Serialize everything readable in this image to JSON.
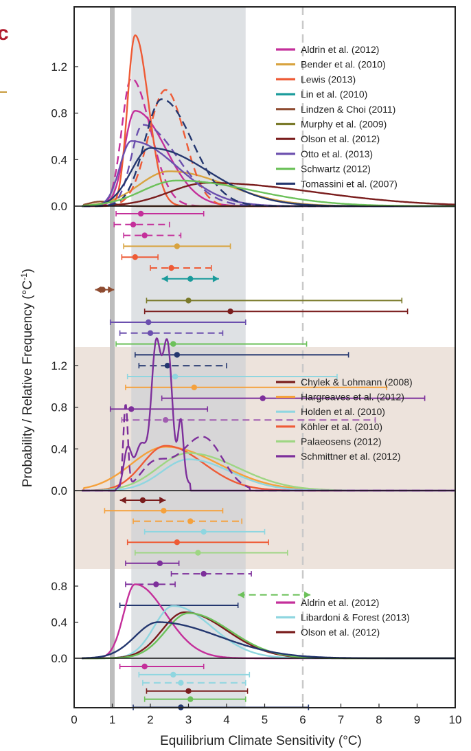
{
  "chart_data": {
    "type": "line",
    "xlabel": "Equilibrium Climate Sensitivity (°C)",
    "ylabel": "Probability / Relative Frequency (°C",
    "ylabel_exp": "-1",
    "ylabel_end": ")",
    "xlim": [
      0,
      10
    ],
    "x_ticks": [
      "0",
      "1",
      "2",
      "3",
      "4",
      "5",
      "6",
      "7",
      "8",
      "9",
      "10"
    ],
    "panel_letter": "c",
    "likely_range": [
      1.5,
      4.5
    ],
    "very_unlikely_below": 1.0,
    "very_unlikely_above": 6.0,
    "panels": [
      {
        "id": "instrumental",
        "ylim": [
          0,
          1.6
        ],
        "y_ticks": [
          "0.0",
          "0.4",
          "0.8",
          "1.2"
        ],
        "y_tick_values": [
          0,
          0.4,
          0.8,
          1.2
        ],
        "legend": [
          "Aldrin et al. (2012)",
          "Bender et al. (2010)",
          "Lewis (2013)",
          "Lin et al. (2010)",
          "Lindzen & Choi (2011)",
          "Murphy et al. (2009)",
          "Olson et al. (2012)",
          "Otto et al. (2013)",
          "Schwartz (2012)",
          "Tomassini et al. (2007)"
        ],
        "legend_colors": [
          "#c42f9a",
          "#d8a33f",
          "#ee5b36",
          "#1a9b9b",
          "#8e4b30",
          "#7a7a2a",
          "#7a1d1d",
          "#6b4fae",
          "#6cc15a",
          "#24376f"
        ],
        "series": [
          {
            "name": "Aldrin et al. (2012)",
            "color": "#c42f9a",
            "mode": 0,
            "pk": 1.6,
            "h": 0.82,
            "sl": 0.28,
            "sr": 0.8
          },
          {
            "name": "Aldrin et al. (2012)",
            "color": "#c42f9a",
            "dash": true,
            "mode": 0,
            "pk": 1.5,
            "h": 1.1,
            "sl": 0.25,
            "sr": 0.5
          },
          {
            "name": "Bender et al. (2010)",
            "color": "#d8a33f",
            "mode": 0,
            "pk": 2.5,
            "h": 0.3,
            "sl": 0.8,
            "sr": 1.5
          },
          {
            "name": "Lewis (2013)",
            "color": "#ee5b36",
            "mode": 0,
            "pk": 1.6,
            "h": 1.47,
            "sl": 0.2,
            "sr": 0.35
          },
          {
            "name": "Lewis (2013)",
            "color": "#ee5b36",
            "dash": true,
            "mode": 0,
            "pk": 2.4,
            "h": 1.0,
            "sl": 0.45,
            "sr": 0.5
          },
          {
            "name": "Lindzen & Choi (2011)",
            "color": "#8e4b30",
            "mode": 0,
            "pk": 0.7,
            "h": 0.04,
            "sl": 0.3,
            "sr": 0.3
          },
          {
            "name": "Olson et al. (2012)",
            "color": "#7a1d1d",
            "mode": 0,
            "pk": 3.5,
            "h": 0.2,
            "sl": 1.0,
            "sr": 2.8
          },
          {
            "name": "Otto et al. (2013)",
            "color": "#6b4fae",
            "mode": 0,
            "pk": 1.5,
            "h": 0.56,
            "sl": 0.3,
            "sr": 1.2
          },
          {
            "name": "Otto et al. (2013)",
            "color": "#6b4fae",
            "dash": true,
            "mode": 0,
            "pk": 1.8,
            "h": 0.7,
            "sl": 0.3,
            "sr": 0.9
          },
          {
            "name": "Tomassini et al. (2007)",
            "color": "#24376f",
            "mode": 0,
            "pk": 2.0,
            "h": 0.5,
            "sl": 0.5,
            "sr": 1.5
          },
          {
            "name": "Tomassini et al. (2007)",
            "color": "#24376f",
            "dash": true,
            "mode": 0,
            "pk": 2.3,
            "h": 0.92,
            "sl": 0.45,
            "sr": 0.8
          },
          {
            "name": "Schwartz (2012)",
            "color": "#6cc15a",
            "mode": 0,
            "pk": 2.7,
            "h": 0.22,
            "sl": 0.9,
            "sr": 2.0
          }
        ]
      },
      {
        "id": "palaeo",
        "ylim": [
          0,
          1.4
        ],
        "y_ticks": [
          "0.0",
          "0.4",
          "0.8",
          "1.2"
        ],
        "y_tick_values": [
          0,
          0.4,
          0.8,
          1.2
        ],
        "legend": [
          "Chylek & Lohmann (2008)",
          "Hargreaves et al. (2012)",
          "Holden et al. (2010)",
          "Köhler et al. (2010)",
          "Palaeosens (2012)",
          "Schmittner et al. (2012)"
        ],
        "legend_colors": [
          "#7a1d1d",
          "#f5a13c",
          "#8fd6e0",
          "#ee5b36",
          "#9ed683",
          "#7d2f9b"
        ],
        "series": [
          {
            "name": "Hargreaves et al. (2012)",
            "color": "#f5a13c",
            "mode": 0,
            "pk": 2.4,
            "h": 0.42,
            "sl": 0.9,
            "sr": 1.4
          },
          {
            "name": "Köhler et al. (2010)",
            "color": "#ee5b36",
            "mode": 0,
            "pk": 2.4,
            "h": 0.43,
            "sl": 0.6,
            "sr": 1.0
          },
          {
            "name": "Palaeosens (2012)",
            "color": "#9ed683",
            "mode": 0,
            "pk": 3.0,
            "h": 0.36,
            "sl": 0.8,
            "sr": 1.3
          },
          {
            "name": "Holden et al. (2010)",
            "color": "#8fd6e0",
            "mode": 0,
            "pk": 3.0,
            "h": 0.3,
            "sl": 0.7,
            "sr": 1.1
          },
          {
            "name": "Schmittner et al. (2012)",
            "color": "#7d2f9b",
            "mode": 1
          },
          {
            "name": "Schmittner et al. (2012)",
            "color": "#7d2f9b",
            "dash": true,
            "mode": 2
          }
        ]
      },
      {
        "id": "combined",
        "ylim": [
          0,
          0.9
        ],
        "y_ticks": [
          "0.0",
          "0.4",
          "0.8"
        ],
        "y_tick_values": [
          0,
          0.4,
          0.8
        ],
        "legend": [
          "Aldrin et al. (2012)",
          "Libardoni & Forest (2013)",
          "Olson et al. (2012)"
        ],
        "legend_colors": [
          "#c42f9a",
          "#8fd6e0",
          "#7a1d1d"
        ],
        "series": [
          {
            "name": "Aldrin et al. (2012)",
            "color": "#c42f9a",
            "mode": 0,
            "pk": 1.6,
            "h": 0.82,
            "sl": 0.3,
            "sr": 0.8
          },
          {
            "name": "Libardoni & Forest (2013)",
            "color": "#8fd6e0",
            "mode": 0,
            "pk": 2.6,
            "h": 0.58,
            "sl": 0.5,
            "sr": 1.0
          },
          {
            "name": "Olson et al. (2012)",
            "color": "#7a1d1d",
            "mode": 0,
            "pk": 2.9,
            "h": 0.51,
            "sl": 0.6,
            "sr": 1.1
          },
          {
            "name": "Olson et al. (2012)",
            "color": "#6cc15a",
            "mode": 0,
            "pk": 3.0,
            "h": 0.5,
            "sl": 0.6,
            "sr": 1.1
          },
          {
            "name": "Olson et al. (2012)",
            "color": "#24376f",
            "mode": 0,
            "pk": 2.2,
            "h": 0.4,
            "sl": 0.6,
            "sr": 1.6
          }
        ]
      }
    ],
    "ranges": [
      {
        "panel": 0,
        "color": "#c42f9a",
        "lo": 1.1,
        "hi": 3.4,
        "med": 1.75,
        "dash": false
      },
      {
        "panel": 0,
        "color": "#c42f9a",
        "lo": 1.05,
        "hi": 2.5,
        "med": 1.55,
        "dash": true
      },
      {
        "panel": 0,
        "color": "#c42f9a",
        "lo": 1.3,
        "hi": 2.8,
        "med": 1.85,
        "dash": true
      },
      {
        "panel": 0,
        "color": "#d8a33f",
        "lo": 1.3,
        "hi": 4.1,
        "med": 2.7,
        "dash": false
      },
      {
        "panel": 0,
        "color": "#ee5b36",
        "lo": 1.25,
        "hi": 2.2,
        "med": 1.6,
        "dash": false
      },
      {
        "panel": 0,
        "color": "#ee5b36",
        "lo": 2.0,
        "hi": 3.6,
        "med": 2.55,
        "dash": true
      },
      {
        "panel": 0,
        "color": "#1a9b9b",
        "lo": 2.3,
        "hi": 3.8,
        "med": 3.05,
        "dash": false,
        "arrows": true
      },
      {
        "panel": 0,
        "color": "#8e4b30",
        "lo": 0.55,
        "hi": 1.05,
        "med": 0.75,
        "dash": false,
        "arrows": true
      },
      {
        "panel": 0,
        "color": "#7a7a2a",
        "lo": 1.9,
        "hi": 8.6,
        "med": 3.0,
        "dash": false
      },
      {
        "panel": 0,
        "color": "#7a1d1d",
        "lo": 1.85,
        "hi": 8.75,
        "med": 4.1,
        "dash": false
      },
      {
        "panel": 0,
        "color": "#6b4fae",
        "lo": 0.95,
        "hi": 4.5,
        "med": 1.95,
        "dash": false
      },
      {
        "panel": 0,
        "color": "#6b4fae",
        "lo": 1.2,
        "hi": 3.9,
        "med": 2.0,
        "dash": true
      },
      {
        "panel": 0,
        "color": "#6cc15a",
        "lo": 1.1,
        "hi": 6.1,
        "med": 2.6,
        "dash": false
      },
      {
        "panel": 0,
        "color": "#24376f",
        "lo": 1.6,
        "hi": 7.2,
        "med": 2.7,
        "dash": false
      },
      {
        "panel": 0,
        "color": "#24376f",
        "lo": 1.7,
        "hi": 4.0,
        "med": 2.45,
        "dash": true
      },
      {
        "panel": 0,
        "color": "#8fd6e0",
        "lo": 1.4,
        "hi": 6.9,
        "med": 2.65,
        "dash": false
      },
      {
        "panel": 0,
        "color": "#f5a13c",
        "lo": 1.35,
        "hi": 8.2,
        "med": 3.15,
        "dash": false
      },
      {
        "panel": 0,
        "color": "#7d2f9b",
        "lo": 2.3,
        "hi": 9.2,
        "med": 4.95,
        "dash": false
      },
      {
        "panel": 0,
        "color": "#7d2f9b",
        "lo": 0.95,
        "hi": 3.5,
        "med": 1.5,
        "dash": false
      },
      {
        "panel": 0,
        "color": "#a15db0",
        "lo": 1.25,
        "hi": 7.9,
        "med": 2.4,
        "dash": true
      },
      {
        "panel": 1,
        "color": "#7a1d1d",
        "lo": 1.2,
        "hi": 2.4,
        "med": 1.8,
        "dash": false,
        "arrows": true
      },
      {
        "panel": 1,
        "color": "#f5a13c",
        "lo": 0.8,
        "hi": 3.9,
        "med": 2.35,
        "dash": false
      },
      {
        "panel": 1,
        "color": "#f5a13c",
        "lo": 1.55,
        "hi": 4.4,
        "med": 3.05,
        "dash": true
      },
      {
        "panel": 1,
        "color": "#8fd6e0",
        "lo": 1.85,
        "hi": 5.0,
        "med": 3.4,
        "dash": false
      },
      {
        "panel": 1,
        "color": "#ee5b36",
        "lo": 1.4,
        "hi": 5.1,
        "med": 2.7,
        "dash": false
      },
      {
        "panel": 1,
        "color": "#9ed683",
        "lo": 1.6,
        "hi": 5.6,
        "med": 3.25,
        "dash": false
      },
      {
        "panel": 1,
        "color": "#7d2f9b",
        "lo": 1.35,
        "hi": 2.75,
        "med": 2.25,
        "dash": false
      },
      {
        "panel": 1,
        "color": "#7d2f9b",
        "lo": 2.55,
        "hi": 4.65,
        "med": 3.4,
        "dash": true
      },
      {
        "panel": 1,
        "color": "#7d2f9b",
        "lo": 1.35,
        "hi": 2.65,
        "med": 2.15,
        "dash": true
      },
      {
        "panel": 1,
        "color": "#6cc15a",
        "lo": 4.3,
        "hi": 6.2,
        "med": null,
        "dash": true,
        "arrows": true
      },
      {
        "panel": 1,
        "color": "#24376f",
        "lo": 1.2,
        "hi": 4.3,
        "med": null,
        "dash": false
      },
      {
        "panel": 2,
        "color": "#c42f9a",
        "lo": 1.2,
        "hi": 3.4,
        "med": 1.85,
        "dash": false
      },
      {
        "panel": 2,
        "color": "#8fd6e0",
        "lo": 1.7,
        "hi": 4.6,
        "med": 2.6,
        "dash": false
      },
      {
        "panel": 2,
        "color": "#8fd6e0",
        "lo": 1.8,
        "hi": 4.5,
        "med": 2.8,
        "dash": true
      },
      {
        "panel": 2,
        "color": "#7a1d1d",
        "lo": 1.9,
        "hi": 4.55,
        "med": 3.0,
        "dash": false
      },
      {
        "panel": 2,
        "color": "#6cc15a",
        "lo": 1.85,
        "hi": 4.5,
        "med": 3.05,
        "dash": false
      },
      {
        "panel": 2,
        "color": "#24376f",
        "lo": 1.55,
        "hi": 6.15,
        "med": 2.8,
        "dash": false
      }
    ]
  }
}
